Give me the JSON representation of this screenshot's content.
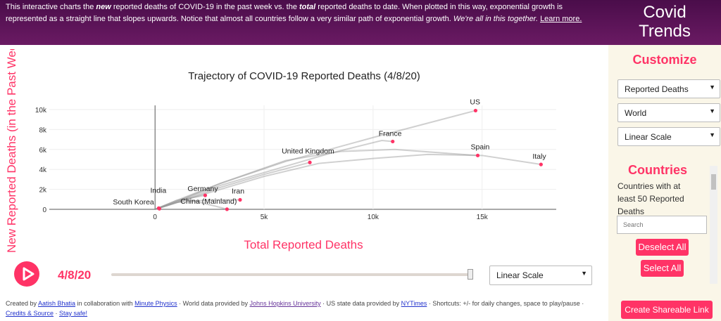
{
  "header": {
    "p1": "This interactive charts the ",
    "new": "new",
    "p2": " reported deaths of COVID-19 in the past week vs. the ",
    "total": "total",
    "p3": " reported deaths to date. When plotted in this way, exponential growth is represented as a straight line that slopes upwards. Notice that almost all countries follow a very similar path of exponential growth. ",
    "together": "We're all in this together.",
    "learn": "Learn more."
  },
  "brand": {
    "line1": "Covid",
    "line2": "Trends"
  },
  "sidebar": {
    "customize": "Customize",
    "metric": "Reported Deaths",
    "region": "World",
    "scale": "Linear Scale",
    "countries_title": "Countries",
    "countries_desc": "Countries with at least 50 Reported Deaths",
    "search_placeholder": "Search",
    "deselect": "Deselect All",
    "select": "Select All",
    "share": "Create Shareable Link"
  },
  "controls": {
    "date": "4/8/20",
    "scale": "Linear Scale",
    "slider_value": 1.0
  },
  "footer": {
    "a": "Created by ",
    "aatish": "Aatish Bhatia",
    "b": " in collaboration with ",
    "mp": "Minute Physics",
    "c": " · World data provided by ",
    "jhu": "Johns Hopkins University",
    "d": " · US state data provided by ",
    "nyt": "NYTimes",
    "e": " · Shortcuts: +/- for daily changes, space to play/pause · ",
    "credits": "Credits & Source",
    "f": " · ",
    "safe": "Stay safe!"
  },
  "colors": {
    "accent": "#ff3366",
    "header": "#5a1358",
    "sidebar": "#faf6e8"
  },
  "chart_data": {
    "type": "line",
    "title": "Trajectory of COVID-19 Reported Deaths (4/8/20)",
    "xlabel": "Total Reported Deaths",
    "ylabel": "New Reported Deaths (in the Past Week)",
    "xlim": [
      -4850,
      18400
    ],
    "ylim": [
      0,
      10000
    ],
    "xticks": [
      {
        "v": 0,
        "l": "0"
      },
      {
        "v": 5000,
        "l": "5k"
      },
      {
        "v": 10000,
        "l": "10k"
      },
      {
        "v": 15000,
        "l": "15k"
      }
    ],
    "yticks": [
      {
        "v": 0,
        "l": "0"
      },
      {
        "v": 2000,
        "l": "2k"
      },
      {
        "v": 4000,
        "l": "4k"
      },
      {
        "v": 6000,
        "l": "6k"
      },
      {
        "v": 8000,
        "l": "8k"
      },
      {
        "v": 10000,
        "l": "10k"
      }
    ],
    "grid": true,
    "series": [
      {
        "name": "US",
        "label": "US",
        "points": [
          [
            0,
            0
          ],
          [
            1000,
            900
          ],
          [
            3000,
            2600
          ],
          [
            6000,
            4800
          ],
          [
            10000,
            7200
          ],
          [
            14700,
            9900
          ]
        ]
      },
      {
        "name": "France",
        "label": "France",
        "points": [
          [
            0,
            0
          ],
          [
            1000,
            800
          ],
          [
            3000,
            2400
          ],
          [
            5500,
            4000
          ],
          [
            8000,
            5600
          ],
          [
            10400,
            6900
          ],
          [
            10900,
            6800
          ]
        ]
      },
      {
        "name": "United Kingdom",
        "label": "United Kingdom",
        "points": [
          [
            0,
            0
          ],
          [
            1000,
            700
          ],
          [
            3000,
            2200
          ],
          [
            5000,
            3500
          ],
          [
            7100,
            4700
          ]
        ]
      },
      {
        "name": "Spain",
        "label": "Spain",
        "points": [
          [
            0,
            0
          ],
          [
            1000,
            800
          ],
          [
            3000,
            2600
          ],
          [
            6000,
            4900
          ],
          [
            8500,
            5800
          ],
          [
            11000,
            6000
          ],
          [
            13500,
            5600
          ],
          [
            14800,
            5400
          ]
        ]
      },
      {
        "name": "Italy",
        "label": "Italy",
        "points": [
          [
            0,
            0
          ],
          [
            1000,
            700
          ],
          [
            3000,
            2000
          ],
          [
            5000,
            3300
          ],
          [
            7500,
            4600
          ],
          [
            10000,
            5100
          ],
          [
            12500,
            5500
          ],
          [
            15000,
            5400
          ],
          [
            17700,
            4500
          ]
        ]
      },
      {
        "name": "Germany",
        "label": "Germany",
        "points": [
          [
            0,
            0
          ],
          [
            1000,
            900
          ],
          [
            2300,
            1400
          ]
        ]
      },
      {
        "name": "Iran",
        "label": "Iran",
        "points": [
          [
            0,
            0
          ],
          [
            1000,
            700
          ],
          [
            2500,
            950
          ],
          [
            3900,
            950
          ]
        ]
      },
      {
        "name": "China (Mainland)",
        "label": "China (Mainland)",
        "points": [
          [
            0,
            0
          ],
          [
            1500,
            1000
          ],
          [
            2800,
            300
          ],
          [
            3300,
            10
          ]
        ]
      },
      {
        "name": "India",
        "label": "India",
        "points": [
          [
            100,
            100
          ],
          [
            170,
            120
          ]
        ]
      },
      {
        "name": "South Korea",
        "label": "South Korea",
        "points": [
          [
            100,
            80
          ],
          [
            200,
            60
          ]
        ]
      }
    ]
  }
}
